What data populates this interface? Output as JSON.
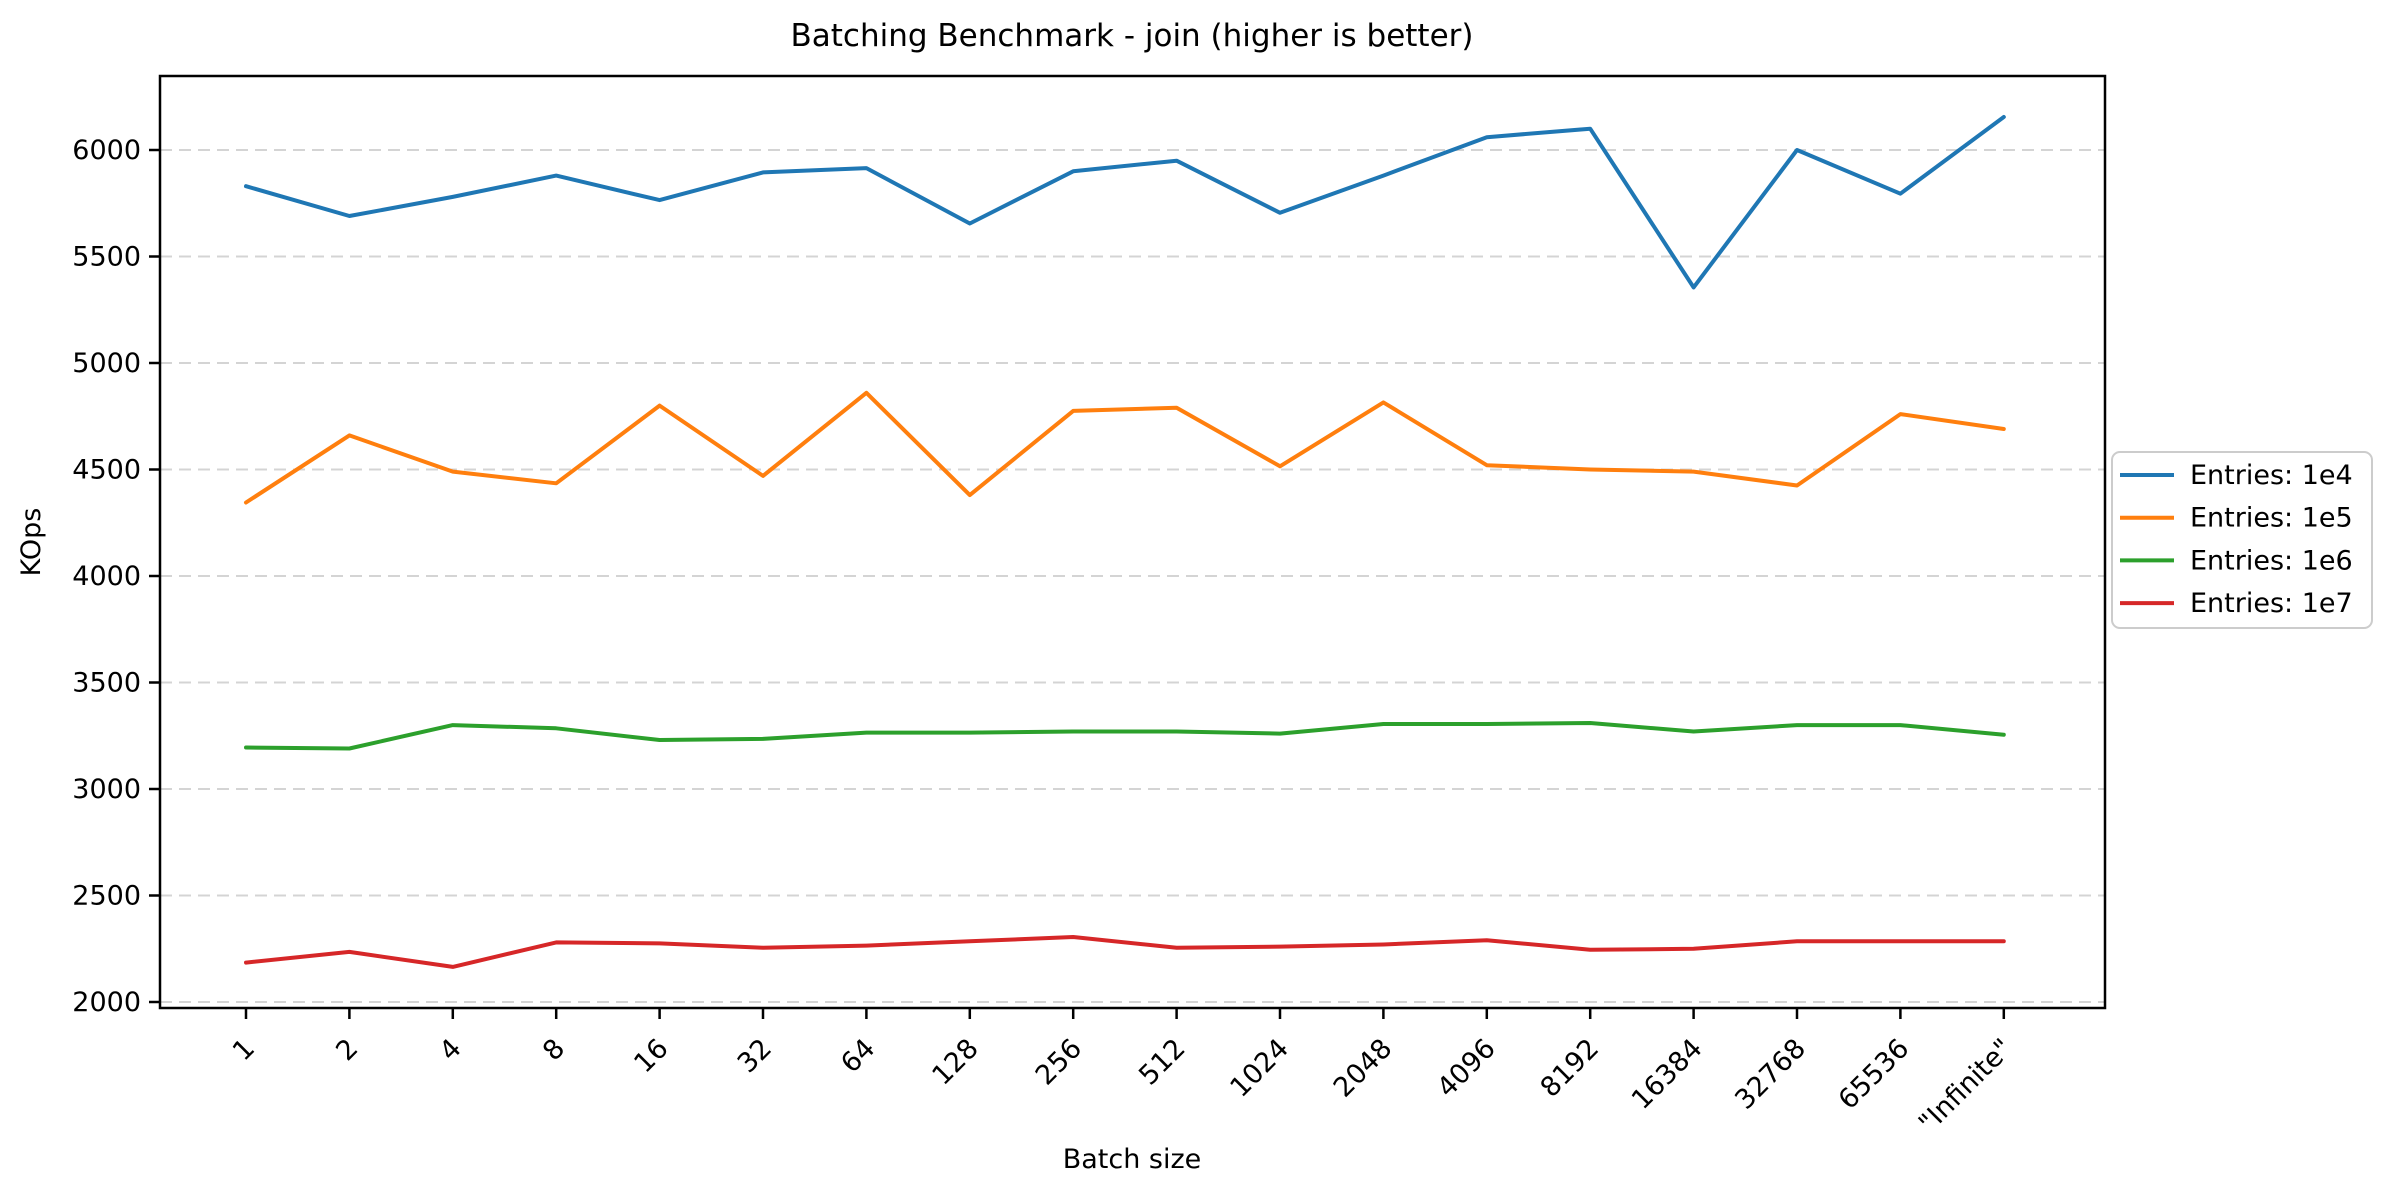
{
  "title": "Batching Benchmark - join (higher is better)",
  "chart_data": {
    "type": "line",
    "title": "Batching Benchmark - join (higher is better)",
    "xlabel": "Batch size",
    "ylabel": "KOps",
    "categories": [
      "1",
      "2",
      "4",
      "8",
      "16",
      "32",
      "64",
      "128",
      "256",
      "512",
      "1024",
      "2048",
      "4096",
      "8192",
      "16384",
      "32768",
      "65536",
      "\"Infinite\""
    ],
    "series": [
      {
        "name": "Entries: 1e4",
        "color": "#1f77b4",
        "values": [
          5830,
          5690,
          5780,
          5880,
          5765,
          5895,
          5915,
          5655,
          5900,
          5950,
          5705,
          5880,
          6060,
          6100,
          5355,
          6000,
          5795,
          6155
        ]
      },
      {
        "name": "Entries: 1e5",
        "color": "#ff7f0e",
        "values": [
          4345,
          4660,
          4490,
          4435,
          4800,
          4470,
          4860,
          4380,
          4775,
          4790,
          4515,
          4815,
          4520,
          4500,
          4490,
          4425,
          4760,
          4690
        ]
      },
      {
        "name": "Entries: 1e6",
        "color": "#2ca02c",
        "values": [
          3195,
          3190,
          3300,
          3285,
          3230,
          3235,
          3265,
          3265,
          3270,
          3270,
          3260,
          3305,
          3305,
          3310,
          3270,
          3300,
          3300,
          3255
        ]
      },
      {
        "name": "Entries: 1e7",
        "color": "#d62728",
        "values": [
          2185,
          2235,
          2165,
          2280,
          2275,
          2255,
          2265,
          2285,
          2305,
          2255,
          2260,
          2270,
          2290,
          2245,
          2250,
          2285,
          2285,
          2285
        ]
      }
    ],
    "y_ticks": [
      2000,
      2500,
      3000,
      3500,
      4000,
      4500,
      5000,
      5500,
      6000
    ],
    "ylim": [
      1972,
      6347
    ],
    "grid": "horizontal-dashed",
    "grid_color": "#d4d4d4",
    "legend_position": "outside-right",
    "higher_is_better": true
  }
}
